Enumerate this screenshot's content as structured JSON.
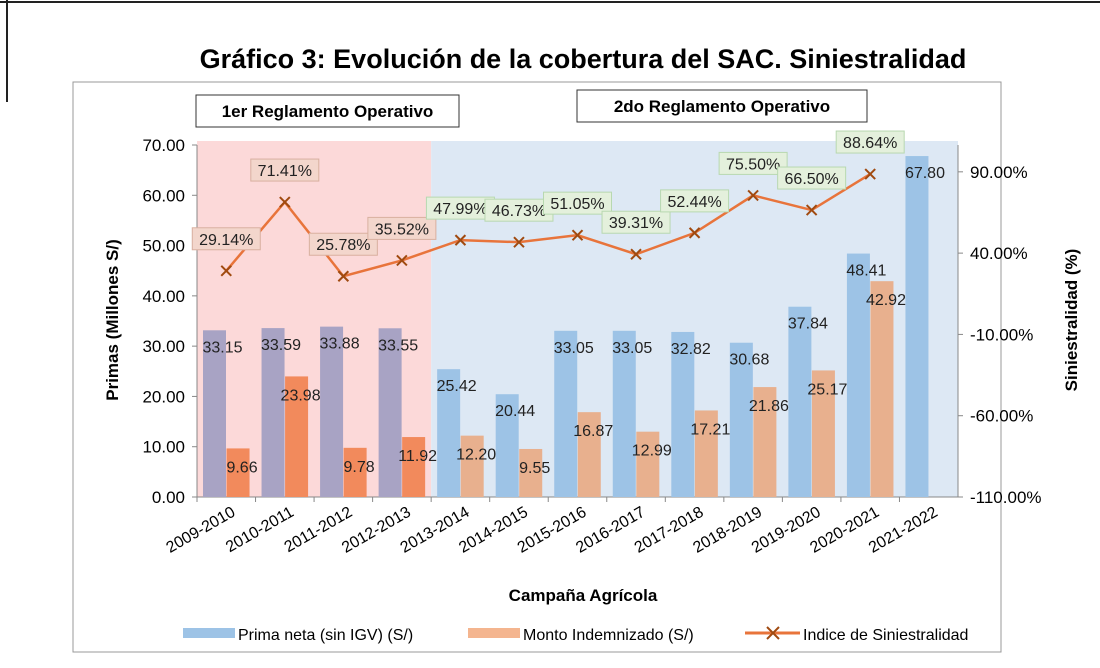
{
  "chart_data": {
    "type": "bar",
    "title": "Gráfico 3: Evolución de la cobertura del SAC. Siniestralidad",
    "xlabel": "Campaña Agrícola",
    "ylabel": "Primas (Millones S/)",
    "y2label": "Siniestralidad (%)",
    "ylim": [
      0,
      70
    ],
    "y2lim": [
      -110,
      106.5
    ],
    "yticks": [
      "0.00",
      "10.00",
      "20.00",
      "30.00",
      "40.00",
      "50.00",
      "60.00",
      "70.00"
    ],
    "y2ticks": [
      "-110.00%",
      "-60.00%",
      "-10.00%",
      "40.00%",
      "90.00%"
    ],
    "grid": false,
    "legend_position": "bottom",
    "categories": [
      "2009-2010",
      "2010-2011",
      "2011-2012",
      "2012-2013",
      "2013-2014",
      "2014-2015",
      "2015-2016",
      "2016-2017",
      "2017-2018",
      "2018-2019",
      "2019-2020",
      "2020-2021",
      "2021-2022"
    ],
    "regions": [
      {
        "label": "1er Reglamento Operativo",
        "from": "2009-2010",
        "to": "2012-2013",
        "color": "#fcd9d9"
      },
      {
        "label": "2do Reglamento Operativo",
        "from": "2013-2014",
        "to": "2021-2022",
        "color": "#dde8f4"
      }
    ],
    "series": [
      {
        "name": "Prima neta (sin IGV) (S/)",
        "type": "bar",
        "axis": "left",
        "color": "#9dc3e6",
        "early_color": "#a8a3c4",
        "values": [
          33.15,
          33.59,
          33.88,
          33.55,
          25.42,
          20.44,
          33.05,
          33.05,
          32.82,
          30.68,
          37.84,
          48.41,
          67.8
        ],
        "labels": [
          "33.15",
          "33.59",
          "33.88",
          "33.55",
          "25.42",
          "20.44",
          "33.05",
          "33.05",
          "32.82",
          "30.68",
          "37.84",
          "48.41",
          "67.80"
        ]
      },
      {
        "name": "Monto Indemnizado (S/)",
        "type": "bar",
        "axis": "left",
        "color": "#e8b08e",
        "early_color": "#f28a5c",
        "values": [
          9.66,
          23.98,
          9.78,
          11.92,
          12.2,
          9.55,
          16.87,
          12.99,
          17.21,
          21.86,
          25.17,
          42.92,
          null
        ],
        "labels": [
          "9.66",
          "23.98",
          "9.78",
          "11.92",
          "12.20",
          "9.55",
          "16.87",
          "12.99",
          "17.21",
          "21.86",
          "25.17",
          "42.92",
          ""
        ]
      },
      {
        "name": "Indice de Siniestralidad",
        "type": "line",
        "axis": "right",
        "color": "#e8743b",
        "values": [
          29.14,
          71.41,
          25.78,
          35.52,
          47.99,
          46.73,
          51.05,
          39.31,
          52.44,
          75.5,
          66.5,
          88.64,
          null
        ],
        "labels": [
          "29.14%",
          "71.41%",
          "25.78%",
          "35.52%",
          "47.99%",
          "46.73%",
          "51.05%",
          "39.31%",
          "52.44%",
          "75.50%",
          "66.50%",
          "88.64%",
          ""
        ]
      }
    ]
  }
}
